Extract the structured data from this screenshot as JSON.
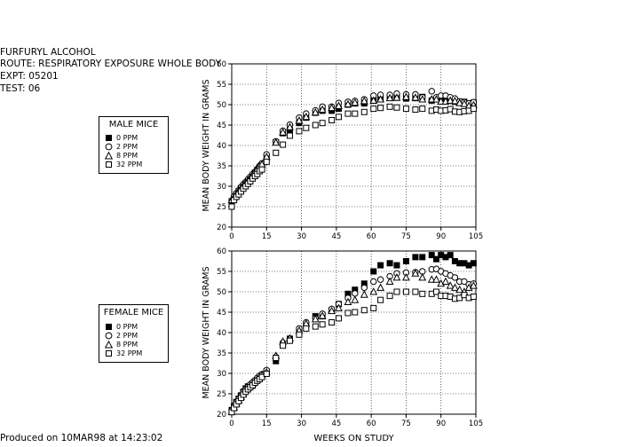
{
  "header": {
    "compound": "FURFURYL ALCOHOL",
    "route": "ROUTE:  RESPIRATORY EXPOSURE WHOLE BODY",
    "expt": "EXPT: 05201",
    "test": "TEST: 06"
  },
  "footer": "Produced on 10MAR98 at 14:23:02",
  "chart_data": [
    {
      "type": "scatter",
      "legend_title": "MALE MICE",
      "xlabel": "",
      "ylabel": "MEAN BODY WEIGHT IN GRAMS",
      "xlim": [
        0,
        105
      ],
      "ylim": [
        20,
        60
      ],
      "xticks": [
        0,
        15,
        30,
        45,
        60,
        75,
        90,
        105
      ],
      "yticks": [
        20,
        25,
        30,
        35,
        40,
        45,
        50,
        55,
        60
      ],
      "grid": true,
      "legend_position": "left",
      "series": [
        {
          "name": "0 PPM",
          "marker": "filled-square",
          "x": [
            0,
            1,
            2,
            3,
            4,
            5,
            6,
            7,
            8,
            9,
            10,
            11,
            12,
            13,
            15,
            19,
            22,
            25,
            29,
            32,
            36,
            39,
            43,
            46,
            50,
            53,
            57,
            61,
            64,
            68,
            71,
            75,
            79,
            82,
            86,
            88,
            90,
            92,
            94,
            96,
            98,
            100,
            102,
            104
          ],
          "y": [
            26.3,
            27.1,
            28.0,
            28.8,
            29.5,
            30.1,
            30.7,
            31.3,
            31.9,
            32.6,
            33.3,
            34.0,
            34.6,
            35.2,
            37.0,
            40.8,
            43.0,
            43.8,
            45.5,
            46.8,
            48.0,
            48.5,
            48.5,
            49.0,
            50.0,
            50.3,
            50.3,
            51.0,
            51.4,
            51.8,
            51.7,
            51.5,
            51.6,
            51.9,
            51.0,
            51.3,
            51.2,
            51.0,
            51.2,
            50.7,
            50.7,
            50.7,
            50.3,
            50.5
          ]
        },
        {
          "name": "2 PPM",
          "marker": "open-circle",
          "x": [
            0,
            1,
            2,
            3,
            4,
            5,
            6,
            7,
            8,
            9,
            10,
            11,
            12,
            13,
            15,
            19,
            22,
            25,
            29,
            32,
            36,
            39,
            43,
            46,
            50,
            53,
            57,
            61,
            64,
            68,
            71,
            75,
            79,
            82,
            86,
            88,
            90,
            92,
            94,
            96,
            98,
            100,
            102,
            104
          ],
          "y": [
            26.5,
            27.5,
            28.3,
            29.0,
            29.8,
            30.5,
            31.0,
            31.7,
            32.3,
            33.0,
            33.5,
            34.2,
            35.0,
            35.6,
            37.8,
            41.0,
            43.6,
            45.1,
            46.8,
            47.8,
            48.6,
            49.5,
            49.5,
            50.4,
            50.7,
            50.9,
            51.3,
            52.2,
            52.4,
            52.4,
            52.7,
            52.5,
            52.5,
            51.8,
            53.3,
            51.8,
            52.2,
            52.2,
            51.8,
            51.5,
            50.8,
            50.6,
            50.3,
            50.6
          ]
        },
        {
          "name": "8 PPM",
          "marker": "open-triangle",
          "x": [
            0,
            1,
            2,
            3,
            4,
            5,
            6,
            7,
            8,
            9,
            10,
            11,
            12,
            13,
            15,
            19,
            22,
            25,
            29,
            32,
            36,
            39,
            43,
            46,
            50,
            53,
            57,
            61,
            64,
            68,
            71,
            75,
            79,
            82,
            86,
            88,
            90,
            92,
            94,
            96,
            98,
            100,
            102,
            104
          ],
          "y": [
            26.6,
            27.3,
            28.1,
            28.9,
            29.6,
            30.3,
            30.9,
            31.5,
            32.1,
            32.8,
            33.5,
            34.3,
            35.0,
            35.4,
            37.2,
            40.7,
            43.2,
            44.5,
            46.1,
            47.0,
            48.1,
            48.8,
            49.2,
            49.7,
            50.1,
            50.5,
            50.9,
            51.0,
            51.3,
            51.6,
            51.7,
            51.9,
            51.7,
            51.3,
            51.3,
            51.3,
            50.8,
            50.8,
            51.0,
            50.9,
            50.4,
            50.2,
            49.7,
            49.9
          ]
        },
        {
          "name": "32 PPM",
          "marker": "open-square",
          "x": [
            0,
            1,
            2,
            3,
            4,
            5,
            6,
            7,
            8,
            9,
            10,
            11,
            12,
            13,
            15,
            19,
            22,
            25,
            29,
            32,
            36,
            39,
            43,
            46,
            50,
            53,
            57,
            61,
            64,
            68,
            71,
            75,
            79,
            82,
            86,
            88,
            90,
            92,
            94,
            96,
            98,
            100,
            102,
            104
          ],
          "y": [
            25.0,
            26.6,
            27.4,
            28.0,
            28.7,
            29.4,
            30.0,
            30.6,
            31.2,
            31.9,
            32.5,
            33.0,
            33.7,
            34.1,
            36.0,
            38.2,
            40.2,
            42.4,
            43.5,
            44.3,
            45.0,
            45.5,
            46.2,
            47.0,
            47.8,
            47.8,
            48.2,
            49.0,
            49.2,
            49.5,
            49.3,
            49.0,
            48.8,
            49.0,
            48.5,
            48.8,
            48.5,
            48.6,
            48.9,
            48.3,
            48.2,
            48.4,
            48.5,
            49.0
          ]
        }
      ]
    },
    {
      "type": "scatter",
      "legend_title": "FEMALE MICE",
      "xlabel": "WEEKS ON STUDY",
      "ylabel": "MEAN BODY WEIGHT IN GRAMS",
      "xlim": [
        0,
        105
      ],
      "ylim": [
        20,
        60
      ],
      "xticks": [
        0,
        15,
        30,
        45,
        60,
        75,
        90,
        105
      ],
      "yticks": [
        20,
        25,
        30,
        35,
        40,
        45,
        50,
        55,
        60
      ],
      "grid": true,
      "legend_position": "left",
      "series": [
        {
          "name": "0 PPM",
          "marker": "filled-square",
          "x": [
            0,
            1,
            2,
            3,
            4,
            5,
            6,
            7,
            8,
            9,
            10,
            11,
            12,
            13,
            15,
            19,
            22,
            25,
            29,
            32,
            36,
            39,
            43,
            46,
            50,
            53,
            57,
            61,
            64,
            68,
            71,
            75,
            79,
            82,
            86,
            88,
            90,
            92,
            94,
            96,
            98,
            100,
            102,
            104
          ],
          "y": [
            21.0,
            22.0,
            23.0,
            23.8,
            24.6,
            25.5,
            26.3,
            26.8,
            26.9,
            27.0,
            28.0,
            28.3,
            29.0,
            29.5,
            30.5,
            33.0,
            37.0,
            38.5,
            40.0,
            42.0,
            44.0,
            44.0,
            45.5,
            47.0,
            49.5,
            50.5,
            52.0,
            55.0,
            56.5,
            57.0,
            56.5,
            57.5,
            58.5,
            58.5,
            59.0,
            58.0,
            59.0,
            58.5,
            59.0,
            57.5,
            57.0,
            57.0,
            56.5,
            57.0
          ]
        },
        {
          "name": "2 PPM",
          "marker": "open-circle",
          "x": [
            0,
            1,
            2,
            3,
            4,
            5,
            6,
            7,
            8,
            9,
            10,
            11,
            12,
            13,
            15,
            19,
            22,
            25,
            29,
            32,
            36,
            39,
            43,
            46,
            50,
            53,
            57,
            61,
            64,
            68,
            71,
            75,
            79,
            82,
            86,
            88,
            90,
            92,
            94,
            96,
            98,
            100,
            102,
            104
          ],
          "y": [
            20.9,
            21.9,
            22.9,
            23.7,
            24.5,
            25.4,
            26.1,
            26.7,
            27.3,
            27.8,
            28.3,
            28.9,
            29.4,
            29.8,
            30.8,
            34.0,
            37.5,
            38.3,
            41.0,
            42.5,
            43.5,
            44.6,
            45.8,
            47.0,
            48.5,
            49.6,
            51.0,
            52.5,
            53.0,
            53.8,
            54.5,
            54.7,
            54.8,
            55.0,
            55.5,
            55.6,
            55.0,
            54.5,
            54.0,
            53.5,
            52.5,
            52.5,
            51.8,
            52.0
          ]
        },
        {
          "name": "8 PPM",
          "marker": "open-triangle",
          "x": [
            0,
            1,
            2,
            3,
            4,
            5,
            6,
            7,
            8,
            9,
            10,
            11,
            12,
            13,
            15,
            19,
            22,
            25,
            29,
            32,
            36,
            39,
            43,
            46,
            50,
            53,
            57,
            61,
            64,
            68,
            71,
            75,
            79,
            82,
            86,
            88,
            90,
            92,
            94,
            96,
            98,
            100,
            102,
            104
          ],
          "y": [
            20.6,
            21.6,
            22.6,
            23.4,
            24.3,
            25.1,
            25.9,
            26.5,
            27.0,
            27.5,
            28.1,
            28.6,
            29.1,
            29.6,
            30.3,
            34.3,
            37.8,
            38.6,
            40.5,
            42.2,
            43.3,
            44.1,
            45.3,
            46.0,
            47.5,
            48.0,
            49.3,
            50.0,
            51.0,
            52.5,
            53.5,
            53.5,
            54.5,
            53.5,
            53.0,
            53.0,
            52.0,
            52.5,
            51.5,
            51.0,
            50.5,
            50.0,
            51.0,
            51.5
          ]
        },
        {
          "name": "32 PPM",
          "marker": "open-square",
          "x": [
            0,
            1,
            2,
            3,
            4,
            5,
            6,
            7,
            8,
            9,
            10,
            11,
            12,
            13,
            15,
            19,
            22,
            25,
            29,
            32,
            36,
            39,
            43,
            46,
            50,
            53,
            57,
            61,
            64,
            68,
            71,
            75,
            79,
            82,
            86,
            88,
            90,
            92,
            94,
            96,
            98,
            100,
            102,
            104
          ],
          "y": [
            20.5,
            21.5,
            22.4,
            23.2,
            24.0,
            24.8,
            25.5,
            26.1,
            26.6,
            27.1,
            27.7,
            28.2,
            28.6,
            29.1,
            29.9,
            33.8,
            36.8,
            38.0,
            39.5,
            41.0,
            41.5,
            42.0,
            42.5,
            43.5,
            44.8,
            45.0,
            45.5,
            46.0,
            48.0,
            49.0,
            50.0,
            50.0,
            50.0,
            49.5,
            49.5,
            50.0,
            49.0,
            49.0,
            48.8,
            48.3,
            48.5,
            49.2,
            48.5,
            48.8
          ]
        }
      ]
    }
  ]
}
